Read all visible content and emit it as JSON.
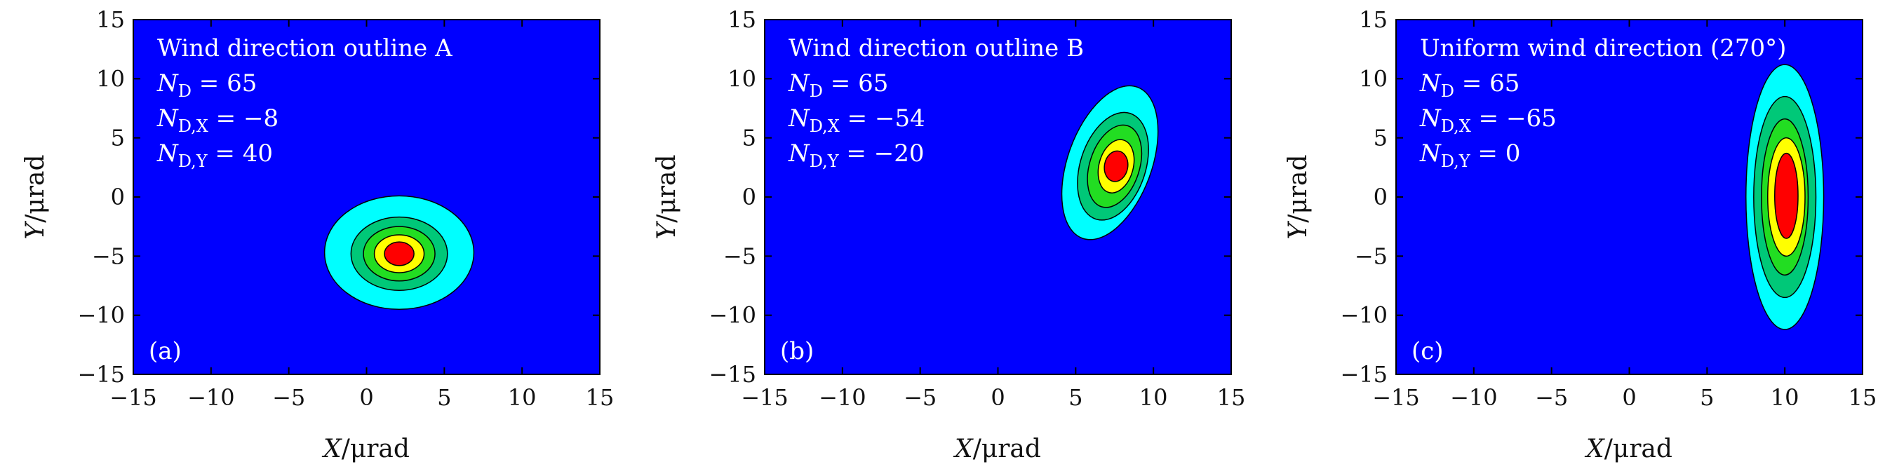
{
  "chart_data": [
    {
      "type": "heatmap",
      "panel_label": "(a)",
      "xlabel": "X/μrad",
      "ylabel": "Y/μrad",
      "xlim": [
        -15,
        15
      ],
      "ylim": [
        -15,
        15
      ],
      "xticks": [
        -15,
        -10,
        -5,
        0,
        5,
        10,
        15
      ],
      "yticks": [
        -15,
        -10,
        -5,
        0,
        5,
        10,
        15
      ],
      "annotations": [
        "Wind direction outline A",
        "N_D = 65",
        "N_D,X = −8",
        "N_D,Y = 40"
      ],
      "contour_centers": [
        {
          "level": 1,
          "color": "#00ffff",
          "cx": 2.1,
          "cy": -4.7,
          "rx": 4.8,
          "ry": 4.8,
          "tilt": 0
        },
        {
          "level": 2,
          "color": "#00c878",
          "cx": 2.1,
          "cy": -4.8,
          "rx": 3.1,
          "ry": 3.1,
          "tilt": 0
        },
        {
          "level": 3,
          "color": "#22dd22",
          "cx": 2.1,
          "cy": -4.8,
          "rx": 2.3,
          "ry": 2.3,
          "tilt": 0
        },
        {
          "level": 4,
          "color": "#ffff00",
          "cx": 2.1,
          "cy": -4.8,
          "rx": 1.6,
          "ry": 1.6,
          "tilt": 0
        },
        {
          "level": 5,
          "color": "#ff0000",
          "cx": 2.1,
          "cy": -4.8,
          "rx": 0.95,
          "ry": 1.0,
          "tilt": 0
        }
      ]
    },
    {
      "type": "heatmap",
      "panel_label": "(b)",
      "xlabel": "X/μrad",
      "ylabel": "Y/μrad",
      "xlim": [
        -15,
        15
      ],
      "ylim": [
        -15,
        15
      ],
      "xticks": [
        -15,
        -10,
        -5,
        0,
        5,
        10,
        15
      ],
      "yticks": [
        -15,
        -10,
        -5,
        0,
        5,
        10,
        15
      ],
      "annotations": [
        "Wind direction outline B",
        "N_D = 65",
        "N_D,X = −54",
        "N_D,Y = −20"
      ],
      "contour_centers": [
        {
          "level": 1,
          "color": "#00ffff",
          "cx": 7.2,
          "cy": 2.9,
          "rx": 2.7,
          "ry": 6.8,
          "tilt": 20
        },
        {
          "level": 2,
          "color": "#00c878",
          "cx": 7.4,
          "cy": 2.6,
          "rx": 2.1,
          "ry": 4.7,
          "tilt": 18
        },
        {
          "level": 3,
          "color": "#22dd22",
          "cx": 7.5,
          "cy": 2.6,
          "rx": 1.6,
          "ry": 3.6,
          "tilt": 18
        },
        {
          "level": 4,
          "color": "#ffff00",
          "cx": 7.6,
          "cy": 2.6,
          "rx": 1.1,
          "ry": 2.3,
          "tilt": 15
        },
        {
          "level": 5,
          "color": "#ff0000",
          "cx": 7.6,
          "cy": 2.6,
          "rx": 0.75,
          "ry": 1.3,
          "tilt": 10
        }
      ]
    },
    {
      "type": "heatmap",
      "panel_label": "(c)",
      "xlabel": "X/μrad",
      "ylabel": "Y/μrad",
      "xlim": [
        -15,
        15
      ],
      "ylim": [
        -15,
        15
      ],
      "xticks": [
        -15,
        -10,
        -5,
        0,
        5,
        10,
        15
      ],
      "yticks": [
        -15,
        -10,
        -5,
        0,
        5,
        10,
        15
      ],
      "annotations": [
        "Uniform wind direction (270°)",
        "N_D = 65",
        "N_D,X = −65",
        "N_D,Y = 0"
      ],
      "contour_centers": [
        {
          "level": 1,
          "color": "#00ffff",
          "cx": 10.0,
          "cy": 0.0,
          "rx": 2.5,
          "ry": 11.2,
          "tilt": 0
        },
        {
          "level": 2,
          "color": "#00c878",
          "cx": 10.0,
          "cy": 0.0,
          "rx": 2.0,
          "ry": 8.5,
          "tilt": 0
        },
        {
          "level": 3,
          "color": "#22dd22",
          "cx": 10.0,
          "cy": 0.0,
          "rx": 1.5,
          "ry": 6.6,
          "tilt": 0
        },
        {
          "level": 4,
          "color": "#ffff00",
          "cx": 10.1,
          "cy": 0.0,
          "rx": 1.2,
          "ry": 5.0,
          "tilt": 0
        },
        {
          "level": 5,
          "color": "#ff0000",
          "cx": 10.1,
          "cy": 0.1,
          "rx": 0.75,
          "ry": 3.6,
          "tilt": 0
        }
      ]
    }
  ],
  "colors": {
    "background": "#0000ff",
    "outline": "#000000"
  }
}
